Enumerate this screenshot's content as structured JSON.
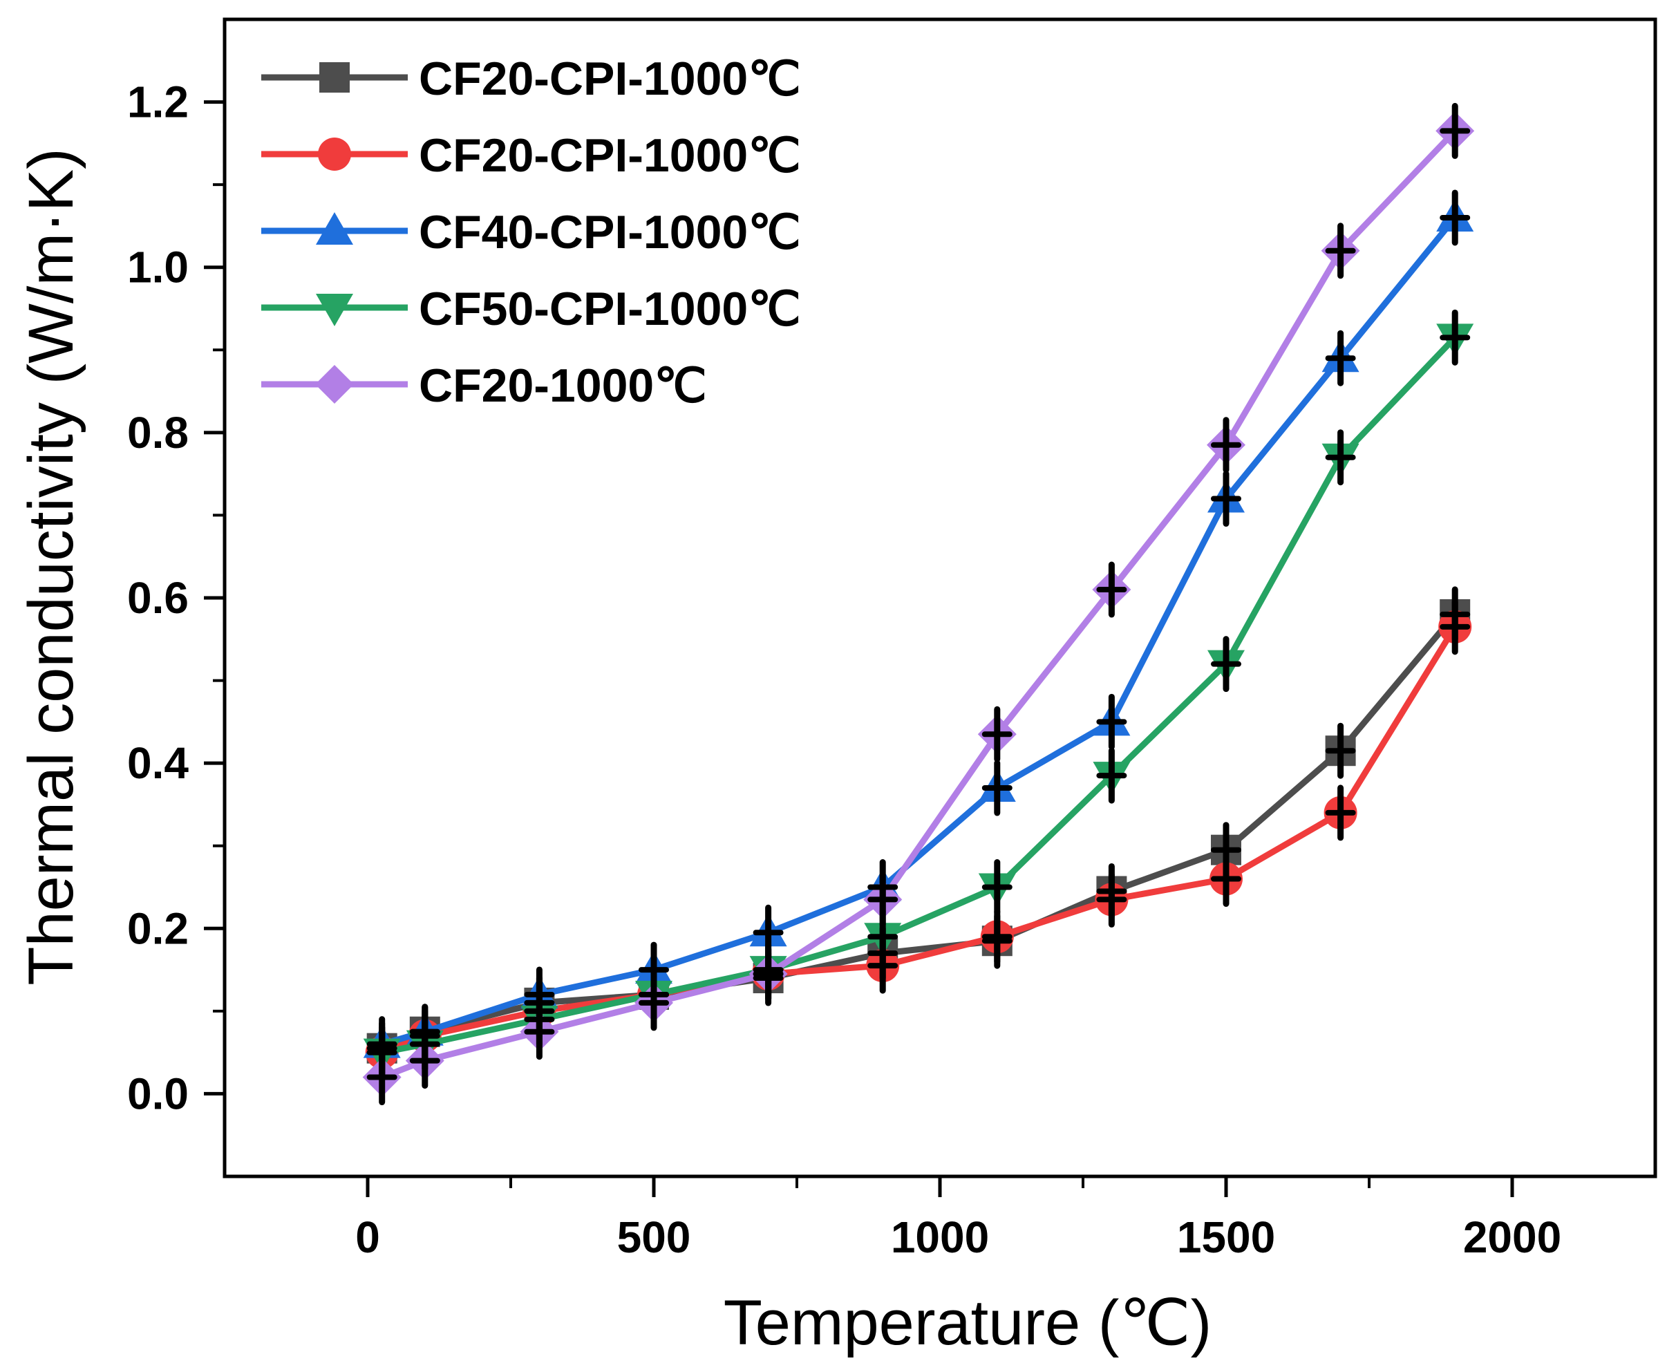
{
  "chart_data": {
    "type": "line",
    "title": "",
    "xlabel": "Temperature (℃)",
    "ylabel": "Thermal conductivity (W/m·K)",
    "xlim": [
      -250,
      2250
    ],
    "ylim": [
      -0.1,
      1.3
    ],
    "xticks": [
      0,
      500,
      1000,
      1500,
      2000
    ],
    "xtick_labels": [
      "0",
      "500",
      "1000",
      "1500",
      "2000"
    ],
    "yticks": [
      0.0,
      0.2,
      0.4,
      0.6,
      0.8,
      1.0,
      1.2
    ],
    "ytick_labels": [
      "0.0",
      "0.2",
      "0.4",
      "0.6",
      "0.8",
      "1.0",
      "1.2"
    ],
    "legend_position": "top-left",
    "grid": false,
    "x": [
      25,
      100,
      300,
      500,
      700,
      900,
      1100,
      1300,
      1500,
      1700,
      1900
    ],
    "series": [
      {
        "name": "CF20-CPI-1000℃",
        "color": "#4d4d4d",
        "marker": "square",
        "values": [
          0.055,
          0.075,
          0.11,
          0.12,
          0.14,
          0.17,
          0.185,
          0.245,
          0.295,
          0.415,
          0.58
        ]
      },
      {
        "name": "CF20-CPI-1000℃",
        "color": "#f03c3c",
        "marker": "circle",
        "values": [
          0.05,
          0.07,
          0.1,
          0.12,
          0.145,
          0.155,
          0.19,
          0.235,
          0.26,
          0.34,
          0.565
        ]
      },
      {
        "name": "CF40-CPI-1000℃",
        "color": "#1f6fdc",
        "marker": "triangle-up",
        "values": [
          0.06,
          0.075,
          0.12,
          0.15,
          0.195,
          0.25,
          0.37,
          0.45,
          0.72,
          0.89,
          1.06
        ]
      },
      {
        "name": "CF50-CPI-1000℃",
        "color": "#26a363",
        "marker": "triangle-down",
        "values": [
          0.05,
          0.06,
          0.09,
          0.12,
          0.15,
          0.19,
          0.25,
          0.385,
          0.52,
          0.77,
          0.915
        ]
      },
      {
        "name": "CF20-1000℃",
        "color": "#b27fe6",
        "marker": "diamond",
        "values": [
          0.02,
          0.04,
          0.075,
          0.11,
          0.145,
          0.235,
          0.435,
          0.61,
          0.785,
          1.02,
          1.165
        ]
      }
    ]
  }
}
